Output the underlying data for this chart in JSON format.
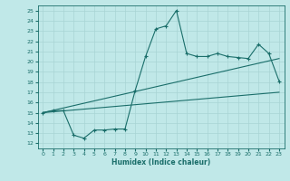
{
  "title": "",
  "xlabel": "Humidex (Indice chaleur)",
  "bg_color": "#c0e8e8",
  "line_color": "#1a6e6a",
  "grid_color": "#a8d4d4",
  "xlim": [
    -0.5,
    23.5
  ],
  "ylim": [
    11.5,
    25.5
  ],
  "xticks": [
    0,
    1,
    2,
    3,
    4,
    5,
    6,
    7,
    8,
    9,
    10,
    11,
    12,
    13,
    14,
    15,
    16,
    17,
    18,
    19,
    20,
    21,
    22,
    23
  ],
  "yticks": [
    12,
    13,
    14,
    15,
    16,
    17,
    18,
    19,
    20,
    21,
    22,
    23,
    24,
    25
  ],
  "line1_x": [
    0,
    1,
    2,
    3,
    4,
    5,
    6,
    7,
    8,
    9,
    10,
    11,
    12,
    13,
    14,
    15,
    16,
    17,
    18,
    19,
    20,
    21,
    22,
    23
  ],
  "line1_y": [
    15.0,
    15.2,
    15.2,
    12.8,
    12.5,
    13.3,
    13.3,
    13.4,
    13.4,
    17.2,
    20.5,
    23.2,
    23.5,
    25.0,
    20.8,
    20.5,
    20.5,
    20.8,
    20.5,
    20.4,
    20.3,
    21.7,
    20.8,
    18.1
  ],
  "line2_x": [
    0,
    23
  ],
  "line2_y": [
    15.0,
    20.3
  ],
  "line3_x": [
    0,
    23
  ],
  "line3_y": [
    15.0,
    17.0
  ]
}
